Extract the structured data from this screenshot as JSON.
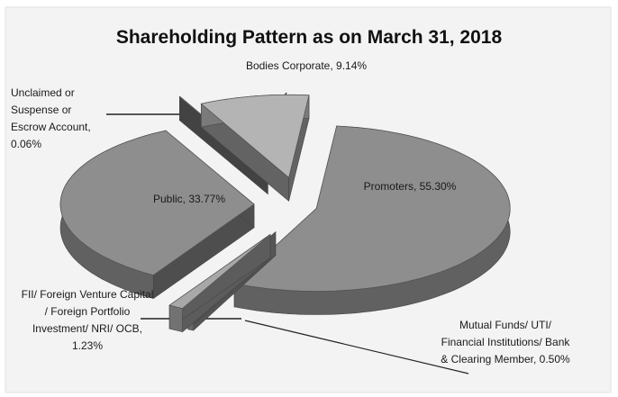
{
  "chart_data": {
    "type": "pie3d",
    "title": "Shareholding Pattern as on March 31, 2018",
    "categories": [
      "Promoters",
      "Mutual Funds/ UTI/ Financial Institutions/ Bank & Clearing Member",
      "FII/ Foreign Venture Capital / Foreign Portfolio Investment/ NRI/ OCB",
      "Public",
      "Unclaimed or Suspense or Escrow Account",
      "Bodies Corporate"
    ],
    "values": [
      55.3,
      0.5,
      1.23,
      33.77,
      0.06,
      9.14
    ],
    "value_labels": [
      "55.30%",
      "0.50%",
      "1.23%",
      "33.77%",
      "0.06%",
      "9.14%"
    ],
    "colors": [
      "#8e8e8e",
      "#9a9a9a",
      "#a8a8a8",
      "#8e8e8e",
      "#7a7a7a",
      "#b4b4b4"
    ]
  }
}
